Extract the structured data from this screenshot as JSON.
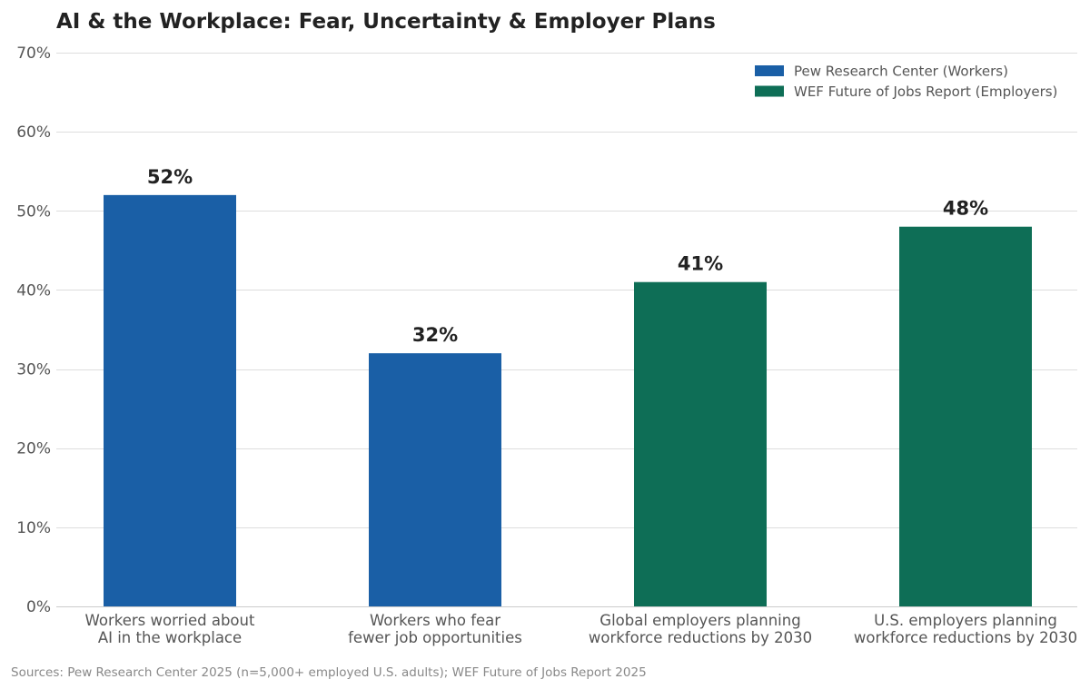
{
  "chart_data": {
    "type": "bar",
    "title": "AI & the Workplace: Fear, Uncertainty & Employer Plans",
    "categories": [
      [
        "Workers worried about",
        "AI in the workplace"
      ],
      [
        "Workers who fear",
        "fewer job opportunities"
      ],
      [
        "Global employers planning",
        "workforce reductions by 2030"
      ],
      [
        "U.S. employers planning",
        "workforce reductions by 2030"
      ]
    ],
    "values": [
      52,
      32,
      41,
      48
    ],
    "value_labels": [
      "52%",
      "32%",
      "41%",
      "48%"
    ],
    "bar_series": [
      0,
      0,
      1,
      1
    ],
    "series": [
      {
        "name": "Pew Research Center (Workers)",
        "color": "#1a5fa6"
      },
      {
        "name": "WEF Future of Jobs Report (Employers)",
        "color": "#0e6e56"
      }
    ],
    "ylim": [
      0,
      70
    ],
    "yticks": [
      0,
      10,
      20,
      30,
      40,
      50,
      60,
      70
    ],
    "ytick_labels": [
      "0%",
      "10%",
      "20%",
      "30%",
      "40%",
      "50%",
      "60%",
      "70%"
    ],
    "xlabel": "",
    "ylabel": "",
    "grid": true,
    "legend_position": "top-right",
    "source": "Sources: Pew Research Center 2025 (n=5,000+ employed U.S. adults); WEF Future of Jobs Report 2025"
  }
}
